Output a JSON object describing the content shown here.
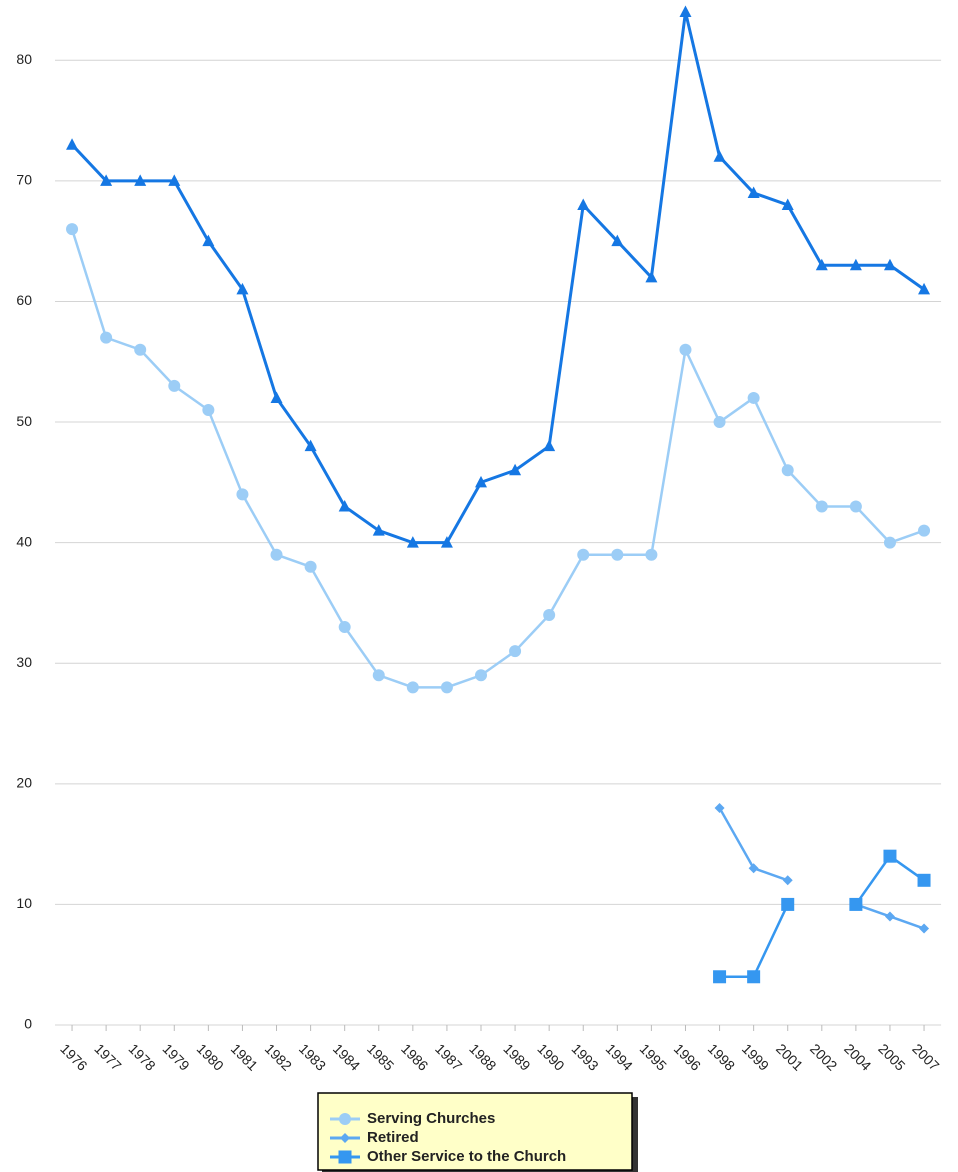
{
  "chart_data": {
    "type": "line",
    "categories": [
      "1976",
      "1977",
      "1978",
      "1979",
      "1980",
      "1981",
      "1982",
      "1983",
      "1984",
      "1985",
      "1986",
      "1987",
      "1988",
      "1989",
      "1990",
      "1993",
      "1994",
      "1995",
      "1996",
      "1998",
      "1999",
      "2001",
      "2002",
      "2004",
      "2005",
      "2007"
    ],
    "series": [
      {
        "color": "#1577e3",
        "marker": "triangle",
        "values": [
          73,
          70,
          70,
          70,
          65,
          61,
          52,
          48,
          43,
          41,
          40,
          40,
          45,
          46,
          48,
          68,
          65,
          62,
          84,
          72,
          69,
          68,
          63,
          63,
          63,
          61
        ]
      },
      {
        "name": "Serving Churches",
        "color": "#9ccdf6",
        "marker": "circle",
        "values": [
          66,
          57,
          56,
          53,
          51,
          44,
          39,
          38,
          33,
          29,
          28,
          28,
          29,
          31,
          34,
          39,
          39,
          39,
          56,
          50,
          52,
          46,
          43,
          43,
          40,
          41
        ]
      },
      {
        "name": "Retired",
        "color": "#5ca8f2",
        "marker": "diamond",
        "values": [
          null,
          null,
          null,
          null,
          null,
          null,
          null,
          null,
          null,
          null,
          null,
          null,
          null,
          null,
          null,
          null,
          null,
          null,
          null,
          18,
          13,
          12,
          null,
          10,
          9,
          8
        ]
      },
      {
        "name": "Other Service to the Church",
        "color": "#3597f0",
        "marker": "square",
        "values": [
          null,
          null,
          null,
          null,
          null,
          null,
          null,
          null,
          null,
          null,
          null,
          null,
          null,
          null,
          null,
          null,
          null,
          null,
          null,
          4,
          4,
          10,
          null,
          10,
          14,
          12
        ]
      }
    ],
    "ylim": [
      0,
      85
    ],
    "yticks": [
      0,
      10,
      20,
      30,
      40,
      50,
      60,
      70,
      80
    ],
    "grid": true
  }
}
